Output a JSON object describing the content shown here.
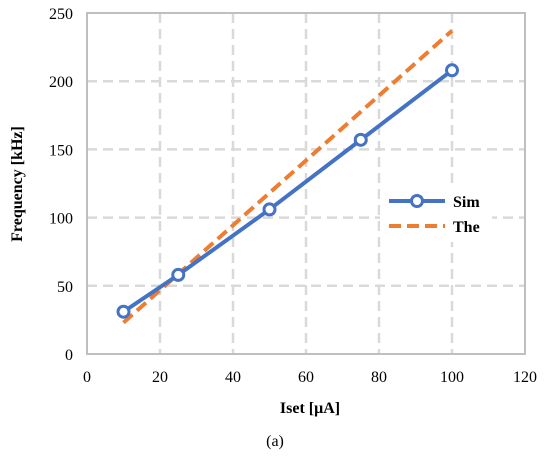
{
  "chart_data": {
    "type": "line",
    "xlabel": "Iset [μA]",
    "ylabel": "Frequency [kHz]",
    "xlim": [
      0,
      120
    ],
    "ylim": [
      0,
      250
    ],
    "xticks": [
      0,
      20,
      40,
      60,
      80,
      100,
      120
    ],
    "yticks": [
      0,
      50,
      100,
      150,
      200,
      250
    ],
    "grid": true,
    "legend_position": "right",
    "series": [
      {
        "name": "Sim",
        "style": "solid-with-circle-markers",
        "color": "#4472C4",
        "x": [
          10,
          25,
          50,
          75,
          100
        ],
        "y": [
          31,
          58,
          106,
          157,
          208
        ]
      },
      {
        "name": "The",
        "style": "dashed",
        "color": "#ED7D31",
        "x": [
          10,
          100
        ],
        "y": [
          23,
          237
        ]
      }
    ]
  },
  "caption": "(a)"
}
